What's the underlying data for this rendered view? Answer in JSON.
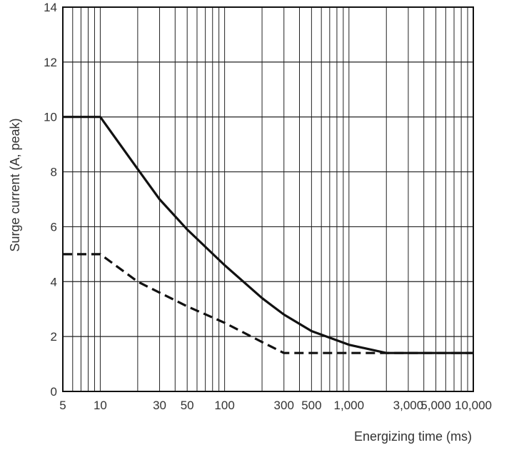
{
  "chart_data": {
    "type": "line",
    "title": "",
    "xlabel": "Energizing time (ms)",
    "ylabel": "Surge current (A, peak)",
    "x_scale": "log",
    "xlim": [
      5,
      10000
    ],
    "ylim": [
      0,
      14
    ],
    "grid": true,
    "x_ticks": [
      {
        "value": 5,
        "label": "5"
      },
      {
        "value": 10,
        "label": "10"
      },
      {
        "value": 30,
        "label": "30"
      },
      {
        "value": 50,
        "label": "50"
      },
      {
        "value": 100,
        "label": "100"
      },
      {
        "value": 300,
        "label": "300"
      },
      {
        "value": 500,
        "label": "500"
      },
      {
        "value": 1000,
        "label": "1,000"
      },
      {
        "value": 3000,
        "label": "3,000"
      },
      {
        "value": 5000,
        "label": "5,000"
      },
      {
        "value": 10000,
        "label": "10,000"
      }
    ],
    "y_ticks": [
      {
        "value": 0,
        "label": "0"
      },
      {
        "value": 2,
        "label": "2"
      },
      {
        "value": 4,
        "label": "4"
      },
      {
        "value": 6,
        "label": "6"
      },
      {
        "value": 8,
        "label": "8"
      },
      {
        "value": 10,
        "label": "10"
      },
      {
        "value": 12,
        "label": "12"
      },
      {
        "value": 14,
        "label": "14"
      }
    ],
    "series": [
      {
        "style": "solid",
        "color": "#111111",
        "x": [
          5,
          10,
          20,
          30,
          50,
          100,
          200,
          300,
          500,
          1000,
          2000,
          10000
        ],
        "y": [
          10,
          10,
          8.1,
          7.0,
          5.9,
          4.6,
          3.4,
          2.8,
          2.2,
          1.7,
          1.4,
          1.4
        ]
      },
      {
        "style": "dashed",
        "color": "#111111",
        "x": [
          5,
          10,
          20,
          30,
          50,
          100,
          200,
          300,
          10000
        ],
        "y": [
          5,
          5,
          4.0,
          3.6,
          3.1,
          2.5,
          1.8,
          1.4,
          1.4
        ]
      }
    ]
  }
}
